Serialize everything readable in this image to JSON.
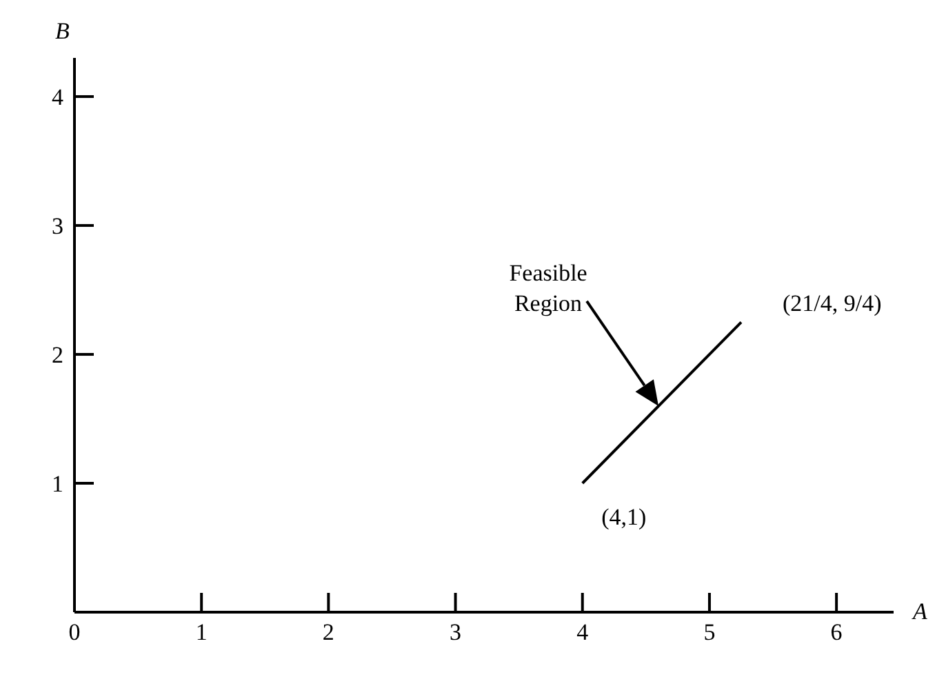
{
  "chart_data": {
    "type": "line",
    "xlabel": "A",
    "ylabel": "B",
    "xlim": [
      0,
      6.45
    ],
    "ylim": [
      0,
      4.3
    ],
    "xticks": [
      0,
      1,
      2,
      3,
      4,
      5,
      6
    ],
    "yticks": [
      1,
      2,
      3,
      4
    ],
    "grid": false,
    "legend": false,
    "marker": "none",
    "line_style": "solid",
    "series": [
      {
        "color": "#000000",
        "x": [
          4,
          5.25
        ],
        "values": [
          1,
          2.25
        ]
      }
    ],
    "annotations": [
      "Feasible Region",
      {
        "text": "(4,1)",
        "x": 4,
        "y": 1
      },
      {
        "text": "(21/4, 9/4)",
        "x": 5.25,
        "y": 2.25
      }
    ]
  }
}
